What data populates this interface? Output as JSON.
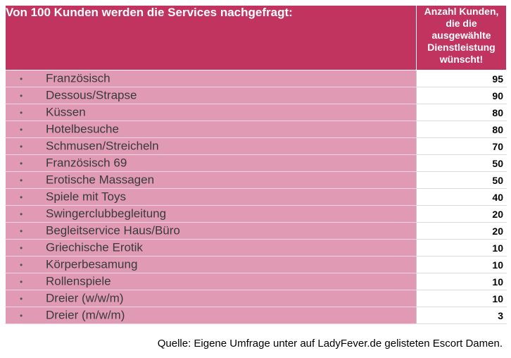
{
  "chart_data": {
    "type": "table",
    "title": "Von 100 Kunden werden die Services nachgefragt:",
    "value_header": "Anzahl Kunden, die die ausgewählte Dienstleistung wünscht!",
    "rows": [
      {
        "label": "Französisch",
        "value": 95
      },
      {
        "label": "Dessous/Strapse",
        "value": 90
      },
      {
        "label": "Küssen",
        "value": 80
      },
      {
        "label": "Hotelbesuche",
        "value": 80
      },
      {
        "label": "Schmusen/Streicheln",
        "value": 70
      },
      {
        "label": "Französisch 69",
        "value": 50
      },
      {
        "label": "Erotische Massagen",
        "value": 50
      },
      {
        "label": "Spiele mit Toys",
        "value": 40
      },
      {
        "label": "Swingerclubbegleitung",
        "value": 20
      },
      {
        "label": "Begleitservice Haus/Büro",
        "value": 20
      },
      {
        "label": "Griechische Erotik",
        "value": 10
      },
      {
        "label": "Körperbesamung",
        "value": 10
      },
      {
        "label": "Rollenspiele",
        "value": 10
      },
      {
        "label": "Dreier (w/w/m)",
        "value": 10
      },
      {
        "label": "Dreier (m/w/m)",
        "value": 3
      }
    ],
    "source": "Quelle: Eigene Umfrage unter auf LadyFever.de gelisteten Escort Damen.",
    "colors": {
      "header": "#c0345f",
      "row": "#e09ab3",
      "value_cell": "#ffffff"
    }
  }
}
